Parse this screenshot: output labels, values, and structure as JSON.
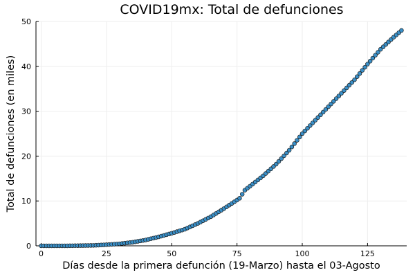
{
  "chart_data": {
    "type": "scatter",
    "title": "COVID19mx: Total de defunciones",
    "xlabel": "Días desde la primera defunción (19-Marzo) hasta el 03-Agosto",
    "ylabel": "Total de defunciones (en miles)",
    "xlim": [
      -2,
      140
    ],
    "ylim": [
      0,
      50
    ],
    "xticks": [
      0,
      25,
      50,
      75,
      100,
      125
    ],
    "yticks": [
      0,
      10,
      20,
      30,
      40,
      50
    ],
    "grid": true,
    "legend": "none",
    "colors": {
      "marker_fill": "#3a8fc7",
      "marker_stroke": "#1a1a1a",
      "grid": "#eeeeee",
      "axis": "#000000"
    },
    "anchor_points": [
      [
        0,
        0.001
      ],
      [
        10,
        0.01
      ],
      [
        20,
        0.1
      ],
      [
        25,
        0.25
      ],
      [
        30,
        0.45
      ],
      [
        35,
        0.8
      ],
      [
        40,
        1.3
      ],
      [
        45,
        2.0
      ],
      [
        50,
        2.8
      ],
      [
        55,
        3.7
      ],
      [
        60,
        5.0
      ],
      [
        65,
        6.5
      ],
      [
        70,
        8.3
      ],
      [
        75,
        10.2
      ],
      [
        76,
        10.6
      ],
      [
        78,
        12.4
      ],
      [
        80,
        13.3
      ],
      [
        85,
        15.6
      ],
      [
        90,
        18.2
      ],
      [
        95,
        21.3
      ],
      [
        100,
        25.0
      ],
      [
        105,
        28.0
      ],
      [
        110,
        31.0
      ],
      [
        115,
        34.0
      ],
      [
        120,
        37.0
      ],
      [
        125,
        40.5
      ],
      [
        130,
        43.8
      ],
      [
        135,
        46.5
      ],
      [
        138,
        48.0
      ]
    ],
    "x_range": [
      0,
      138
    ]
  }
}
